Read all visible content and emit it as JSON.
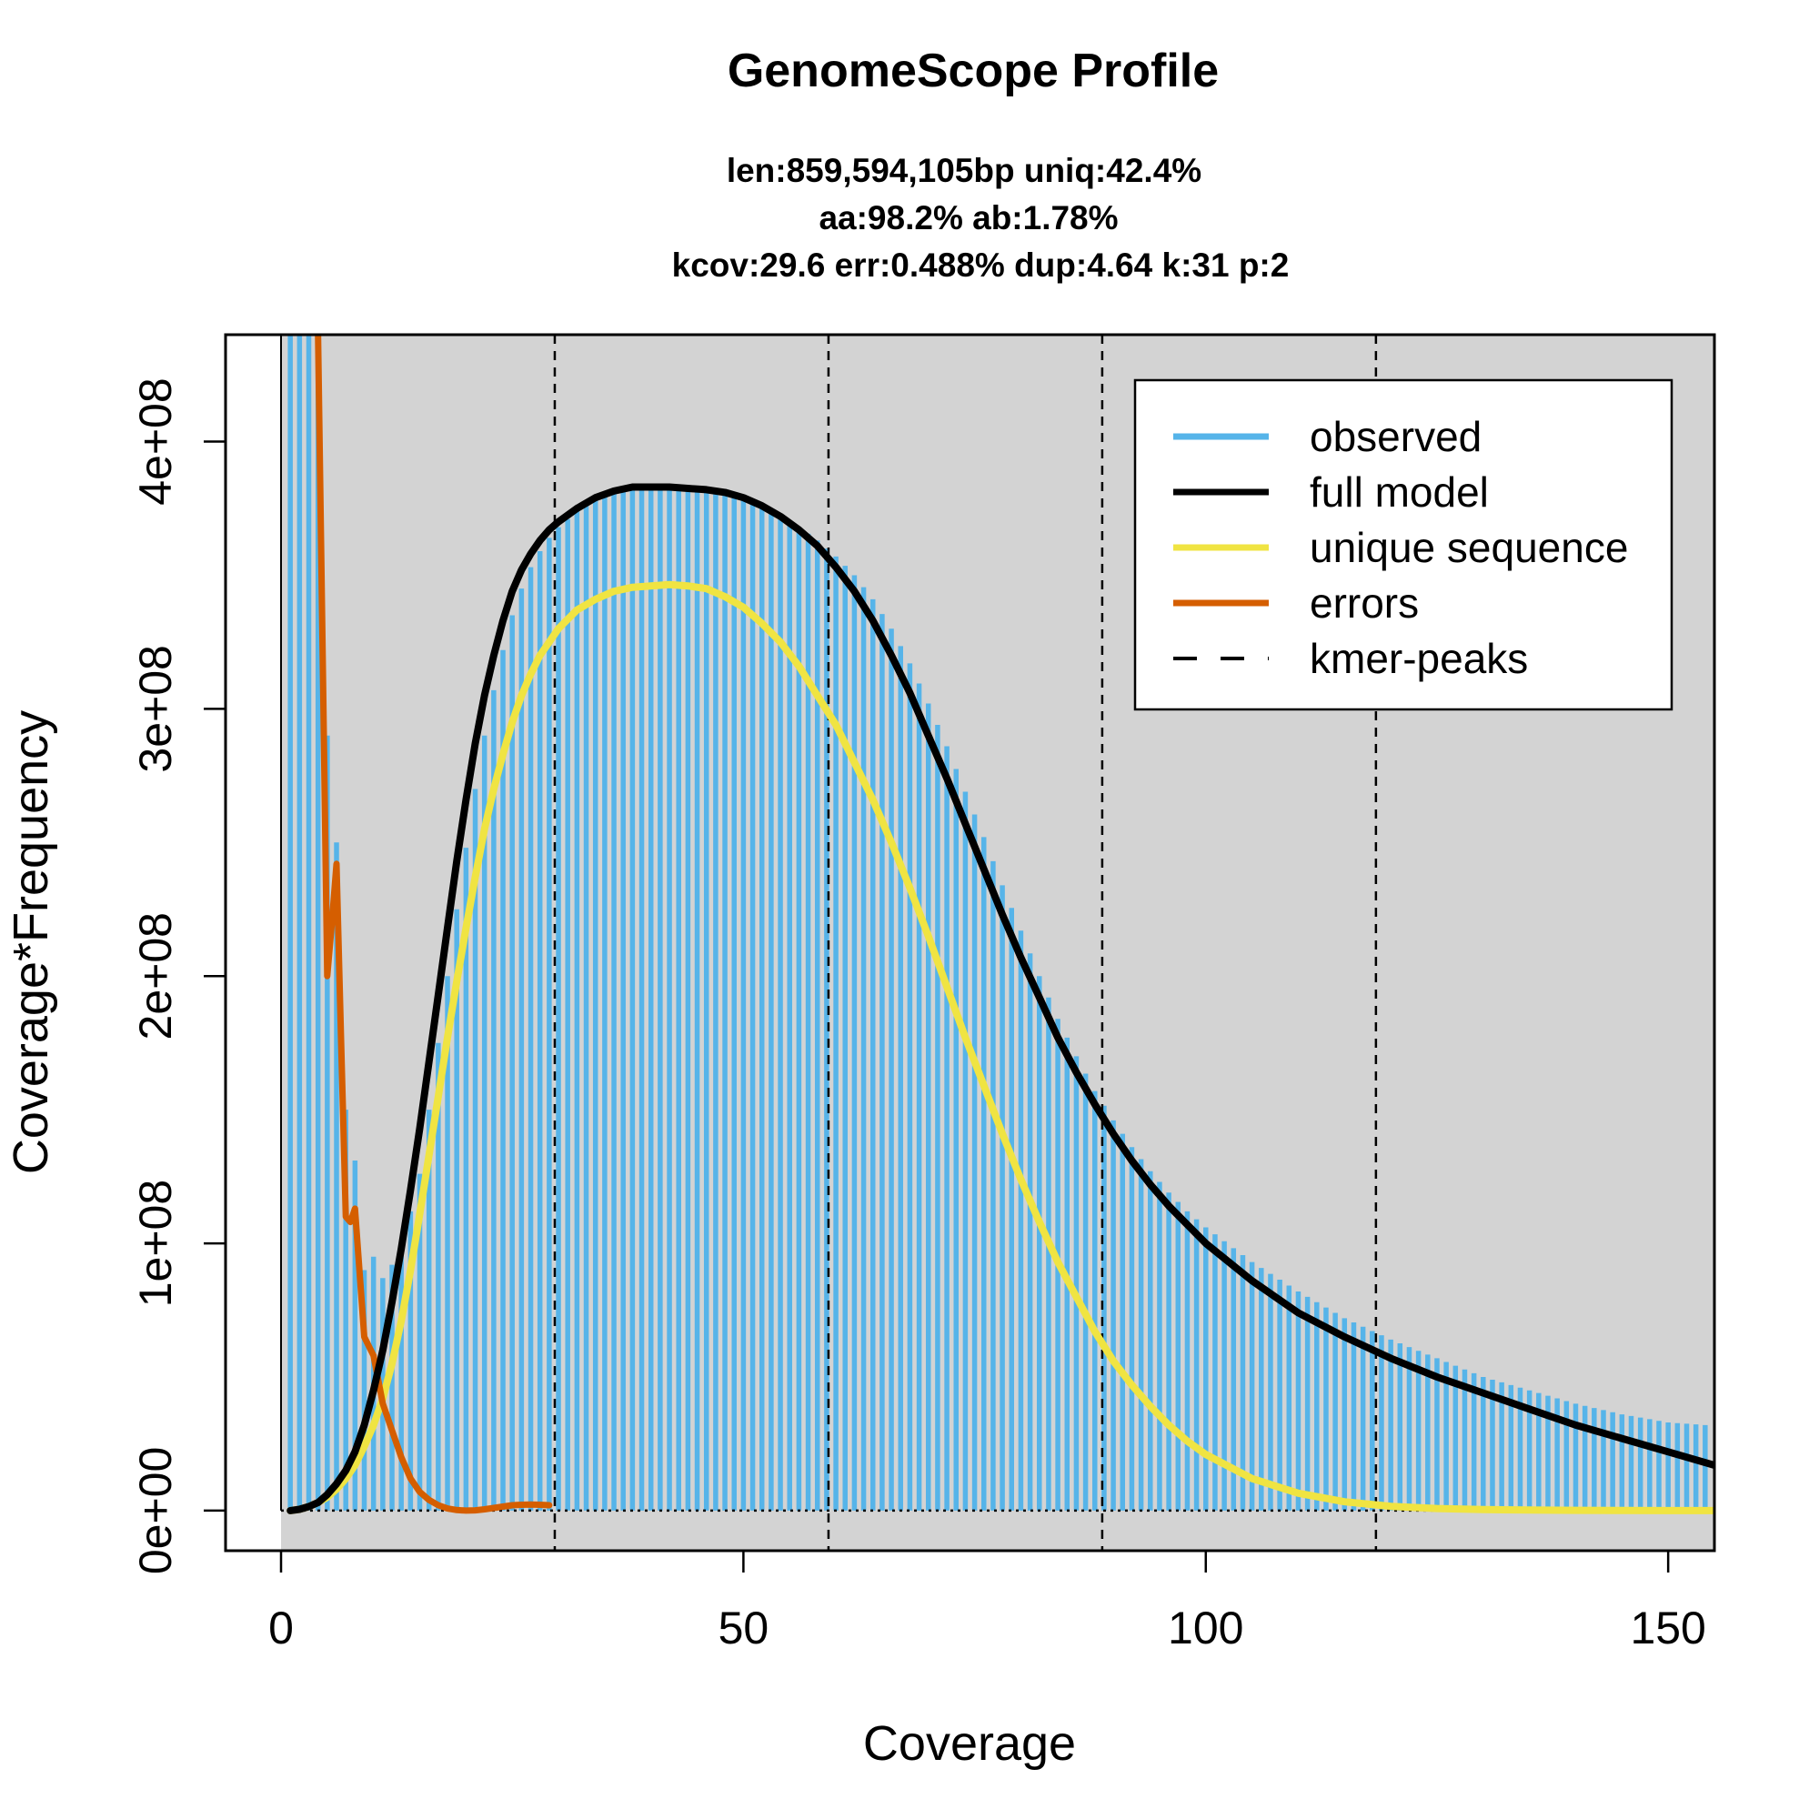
{
  "chart_data": {
    "type": "line",
    "title": "GenomeScope Profile",
    "subtitle_lines": [
      "len:859,594,105bp uniq:42.4%",
      "aa:98.2% ab:1.78%",
      "kcov:29.6 err:0.488%  dup:4.64  k:31 p:2"
    ],
    "xlabel": "Coverage",
    "ylabel": "Coverage*Frequency",
    "xlim": [
      -6,
      155
    ],
    "ylim": [
      -15000000,
      440000000
    ],
    "xticks": [
      0,
      50,
      100,
      150
    ],
    "xtick_labels": [
      "0",
      "50",
      "100",
      "150"
    ],
    "yticks": [
      0,
      100000000,
      200000000,
      300000000,
      400000000
    ],
    "ytick_labels": [
      "0e+00",
      "1e+08",
      "2e+08",
      "3e+08",
      "4e+08"
    ],
    "panel_background": "#d3d3d3",
    "legend_position": "top-right",
    "legend": [
      {
        "label": "observed",
        "color": "#56b4e9",
        "style": "solid"
      },
      {
        "label": "full model",
        "color": "#000000",
        "style": "solid"
      },
      {
        "label": "unique sequence",
        "color": "#f0e442",
        "style": "solid"
      },
      {
        "label": "errors",
        "color": "#d55e00",
        "style": "solid"
      },
      {
        "label": "kmer-peaks",
        "color": "#000000",
        "style": "dashed"
      }
    ],
    "kmer_peaks": [
      29.6,
      59.2,
      88.8,
      118.4
    ],
    "observed": {
      "name": "observed",
      "color": "#56b4e9",
      "x": [
        1,
        2,
        3,
        4,
        5,
        6,
        7,
        8,
        9,
        10,
        11,
        12,
        13,
        14,
        15,
        16,
        17,
        18,
        19,
        20,
        21,
        22,
        23,
        24,
        25,
        26,
        27,
        28,
        29,
        30,
        32,
        34,
        36,
        38,
        40,
        42,
        44,
        46,
        48,
        50,
        52,
        54,
        56,
        58,
        60,
        62,
        64,
        66,
        68,
        70,
        72,
        74,
        76,
        78,
        80,
        82,
        84,
        86,
        88,
        90,
        92,
        94,
        96,
        98,
        100,
        105,
        110,
        115,
        120,
        125,
        130,
        135,
        140,
        145,
        150,
        154
      ],
      "y": [
        440000000,
        440000000,
        440000000,
        440000000,
        290000000,
        250000000,
        150000000,
        131000000,
        90000000,
        95000000,
        87000000,
        92000000,
        100000000,
        112000000,
        126000000,
        150000000,
        175000000,
        200000000,
        225000000,
        248000000,
        270000000,
        290000000,
        307000000,
        322000000,
        335000000,
        345000000,
        353000000,
        359000000,
        364000000,
        368000000,
        374000000,
        378000000,
        381000000,
        382000000,
        382000000,
        382000000,
        382000000,
        381000000,
        380000000,
        378000000,
        376000000,
        372000000,
        368000000,
        363000000,
        357000000,
        350000000,
        341000000,
        330000000,
        317000000,
        302000000,
        286000000,
        269000000,
        252000000,
        234000000,
        217000000,
        200000000,
        184000000,
        170000000,
        157000000,
        146000000,
        136000000,
        127000000,
        119000000,
        112000000,
        106000000,
        93000000,
        82000000,
        72000000,
        64000000,
        57000000,
        50000000,
        45000000,
        40000000,
        36000000,
        33000000,
        32000000
      ]
    },
    "series": [
      {
        "name": "full model",
        "color": "#000000",
        "x": [
          1,
          2,
          3,
          4,
          5,
          6,
          7,
          8,
          9,
          10,
          11,
          12,
          13,
          14,
          15,
          16,
          17,
          18,
          19,
          20,
          21,
          22,
          23,
          24,
          25,
          26,
          27,
          28,
          29,
          30,
          32,
          34,
          36,
          38,
          40,
          42,
          44,
          46,
          48,
          50,
          52,
          54,
          56,
          58,
          60,
          62,
          64,
          66,
          68,
          70,
          72,
          74,
          76,
          78,
          80,
          82,
          84,
          86,
          88,
          90,
          92,
          94,
          96,
          98,
          100,
          105,
          110,
          115,
          120,
          125,
          130,
          135,
          140,
          145,
          150,
          155
        ],
        "y": [
          0,
          500000,
          1500000,
          3000000,
          6000000,
          10000000,
          15000000,
          22000000,
          32000000,
          45000000,
          60000000,
          78000000,
          98000000,
          120000000,
          143000000,
          168000000,
          193000000,
          218000000,
          243000000,
          266000000,
          287000000,
          305000000,
          320000000,
          333000000,
          344000000,
          352000000,
          358000000,
          363000000,
          367000000,
          370000000,
          375000000,
          379000000,
          381500000,
          383000000,
          383000000,
          383000000,
          382500000,
          382000000,
          381000000,
          379000000,
          376000000,
          372000000,
          367000000,
          361000000,
          353000000,
          344000000,
          333000000,
          320000000,
          306000000,
          290000000,
          274000000,
          257000000,
          240000000,
          223000000,
          207000000,
          192000000,
          177000000,
          164000000,
          152000000,
          141000000,
          131000000,
          122000000,
          114000000,
          107000000,
          100000000,
          86000000,
          74000000,
          65000000,
          57000000,
          50000000,
          44000000,
          38000000,
          32000000,
          27000000,
          22000000,
          17000000
        ]
      },
      {
        "name": "unique sequence",
        "color": "#f0e442",
        "x": [
          1,
          2,
          3,
          4,
          5,
          6,
          7,
          8,
          9,
          10,
          11,
          12,
          13,
          14,
          15,
          16,
          17,
          18,
          19,
          20,
          21,
          22,
          23,
          24,
          25,
          26,
          27,
          28,
          29,
          30,
          32,
          34,
          36,
          38,
          40,
          42,
          44,
          46,
          48,
          50,
          52,
          54,
          56,
          58,
          60,
          62,
          64,
          66,
          68,
          70,
          72,
          74,
          76,
          78,
          80,
          82,
          84,
          86,
          88,
          90,
          92,
          94,
          96,
          98,
          100,
          105,
          110,
          115,
          120,
          125,
          130,
          135,
          140,
          145,
          150,
          155
        ],
        "y": [
          0,
          500000,
          1500000,
          3000000,
          5000000,
          8000000,
          12000000,
          17000000,
          24000000,
          32000000,
          42000000,
          55000000,
          71000000,
          90000000,
          111000000,
          133000000,
          155000000,
          177000000,
          198000000,
          218000000,
          237000000,
          255000000,
          270000000,
          283000000,
          295000000,
          305000000,
          313000000,
          320000000,
          325000000,
          330000000,
          337000000,
          341000000,
          344000000,
          345500000,
          346000000,
          346500000,
          346000000,
          345000000,
          342000000,
          338000000,
          332000000,
          325000000,
          316000000,
          305000000,
          294000000,
          280000000,
          266000000,
          250000000,
          233000000,
          215000000,
          196000000,
          177000000,
          159000000,
          141000000,
          124000000,
          108000000,
          93000000,
          80000000,
          67000000,
          56000000,
          47000000,
          39000000,
          32000000,
          26000000,
          21000000,
          12000000,
          6500000,
          3300000,
          1600000,
          800000,
          400000,
          200000,
          100000,
          50000,
          20000,
          10000
        ]
      },
      {
        "name": "errors",
        "color": "#d55e00",
        "x": [
          4,
          4.5,
          5,
          5.5,
          6,
          6.5,
          7,
          7.5,
          8,
          9,
          10,
          11,
          12,
          13,
          14,
          15,
          16,
          17,
          18,
          19,
          20,
          21,
          22,
          23,
          24,
          25,
          26,
          27,
          28,
          29
        ],
        "y": [
          440000000,
          320000000,
          200000000,
          220000000,
          242000000,
          175000000,
          110000000,
          108000000,
          113000000,
          65000000,
          58000000,
          40000000,
          30000000,
          20000000,
          12000000,
          7000000,
          4000000,
          2000000,
          800000,
          200000,
          0,
          100000,
          500000,
          1000000,
          1500000,
          2000000,
          2200000,
          2300000,
          2200000,
          2000000
        ]
      }
    ]
  }
}
